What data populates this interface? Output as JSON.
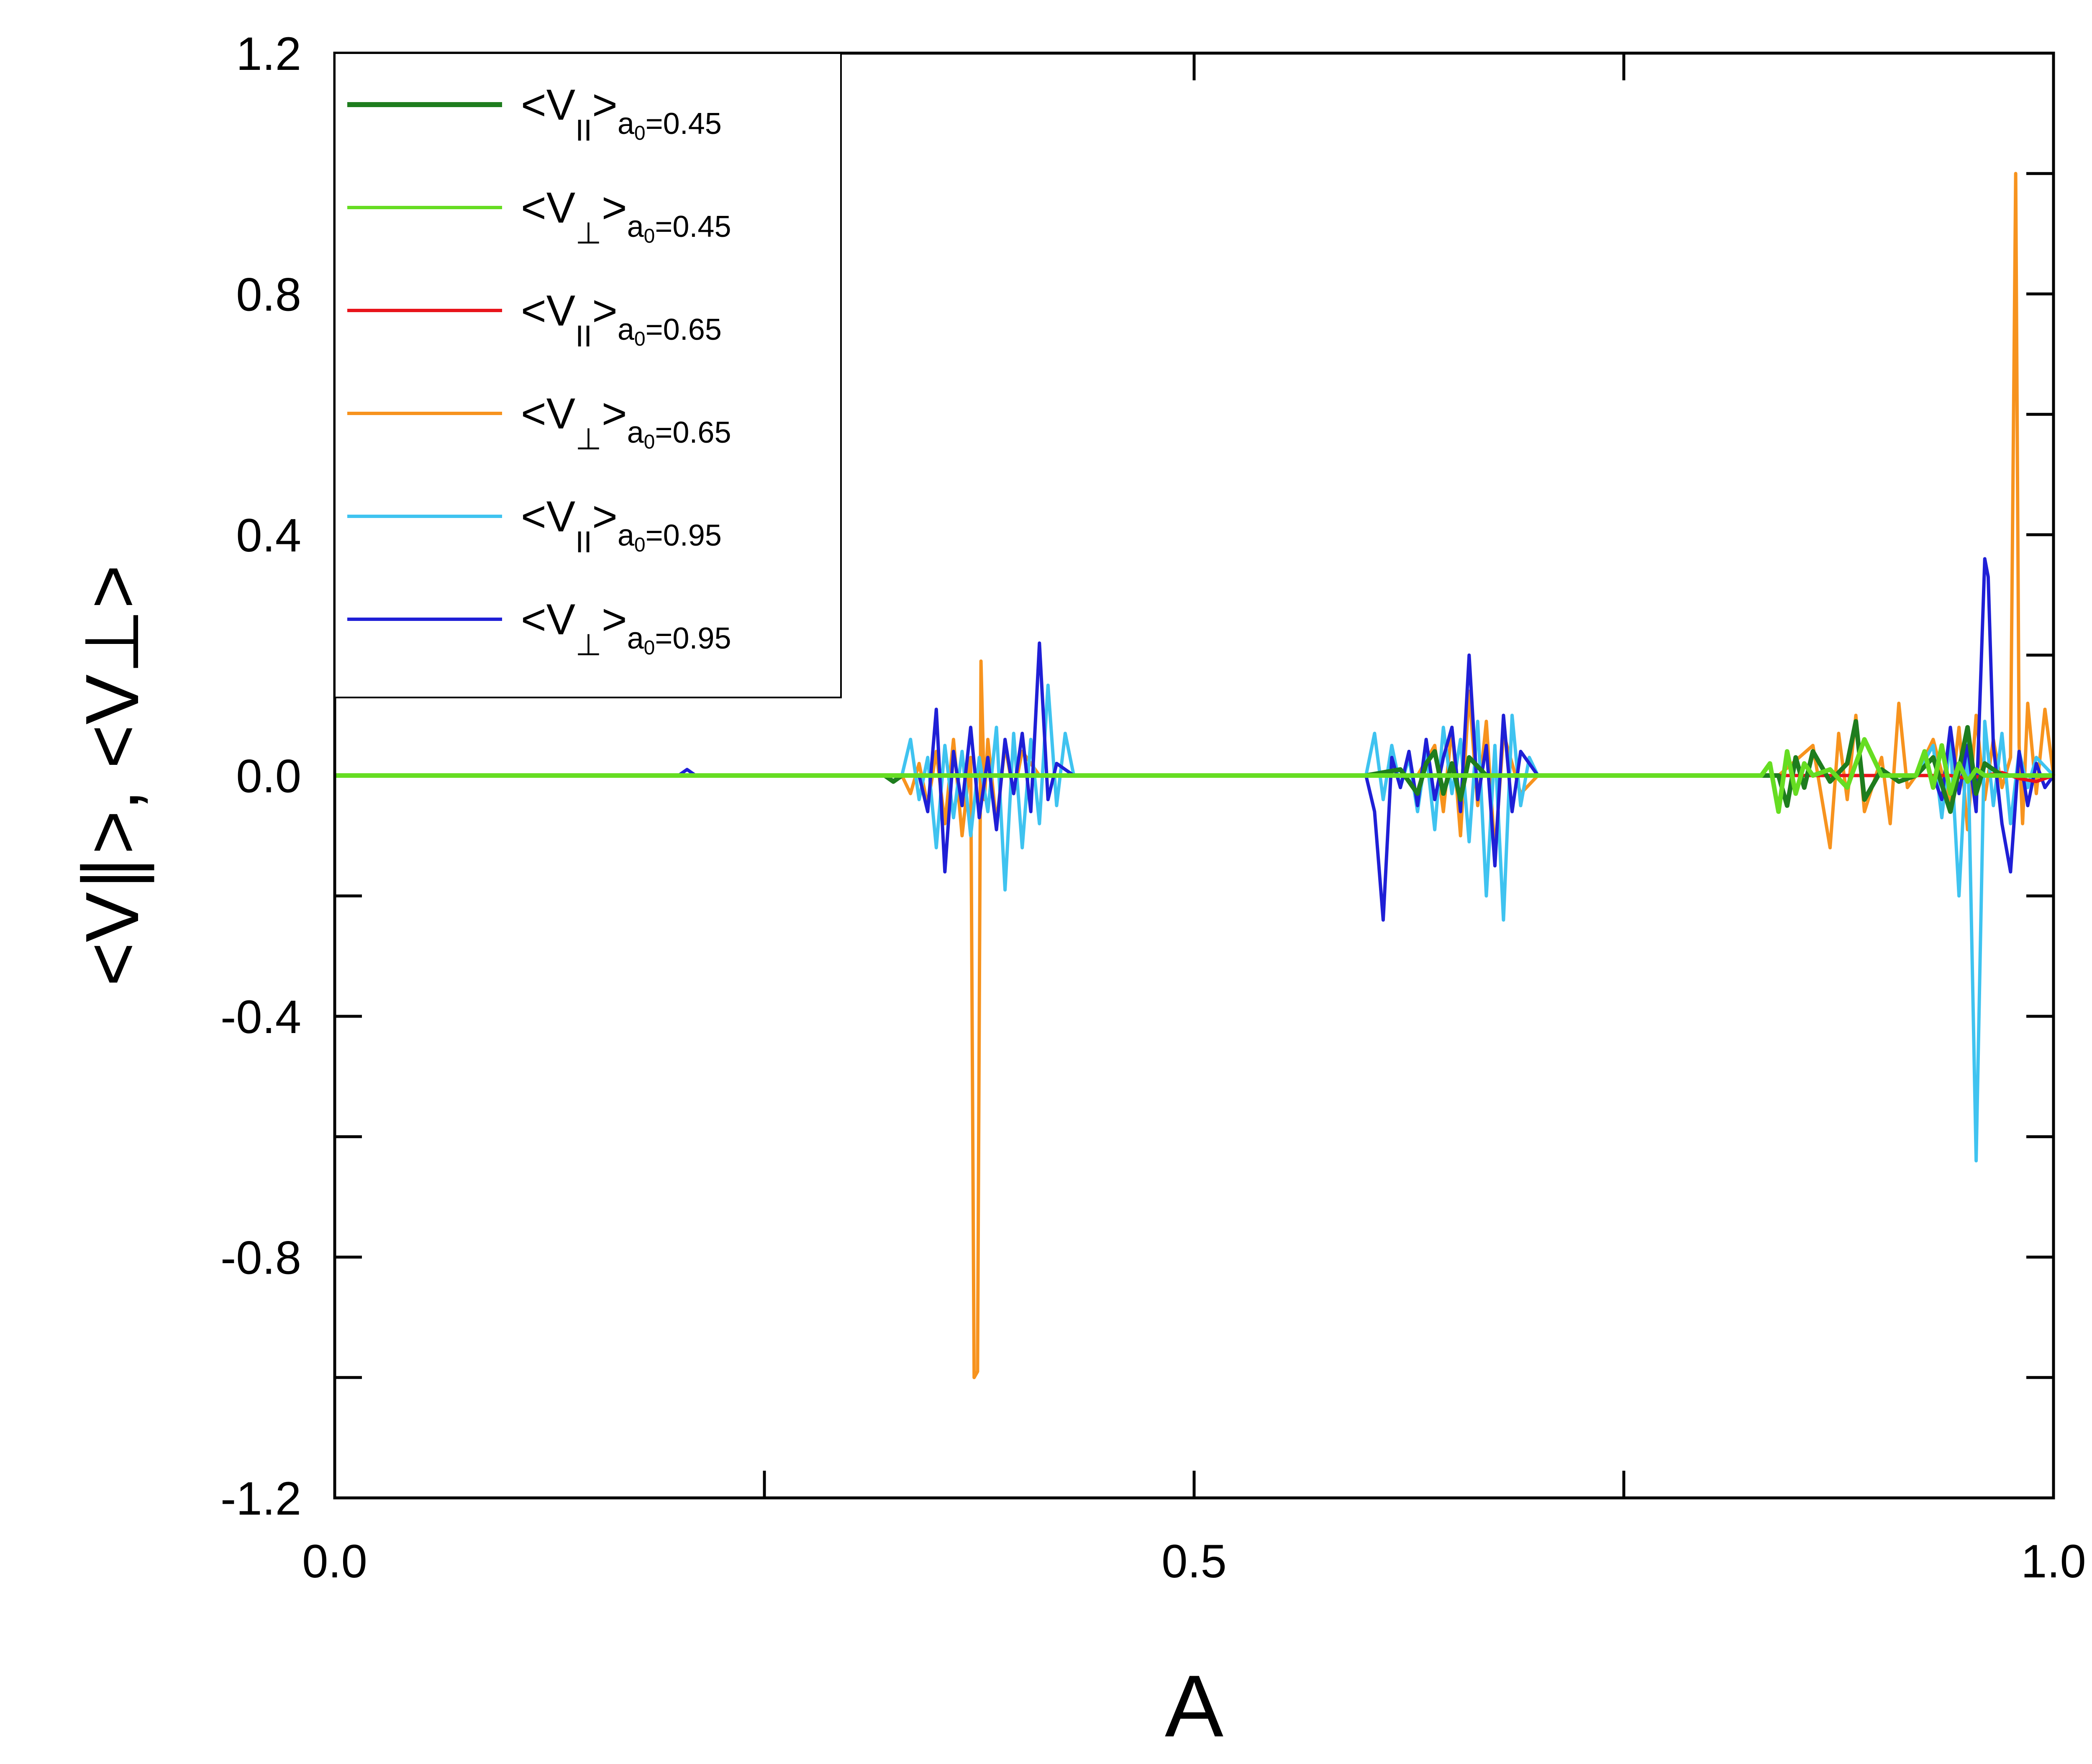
{
  "chart_data": {
    "type": "line",
    "title": "",
    "xlabel": "A",
    "ylabel": "<V∥>, <V⊥>",
    "xlim": [
      0.0,
      1.0
    ],
    "ylim": [
      -1.2,
      1.2
    ],
    "xticks": [
      0.0,
      0.25,
      0.5,
      0.75,
      1.0
    ],
    "xtick_labels": [
      "0.0",
      "",
      "0.5",
      "",
      "1.0"
    ],
    "yticks": [
      -1.2,
      -1.0,
      -0.8,
      -0.6,
      -0.4,
      -0.2,
      0.0,
      0.2,
      0.4,
      0.6,
      0.8,
      1.0,
      1.2
    ],
    "ytick_labels": [
      "-1.2",
      "",
      "-0.8",
      "",
      "-0.4",
      "",
      "0.0",
      "",
      "0.4",
      "",
      "0.8",
      "",
      "1.2"
    ],
    "grid": false,
    "legend_position": "top-left",
    "series": [
      {
        "name": "<V∥>a0=0.45",
        "legend_main": "<V",
        "legend_sym": "II",
        "legend_close": ">",
        "legend_sub": "a",
        "legend_subsub": "0",
        "legend_value": "=0.45",
        "color": "#1e7d1e",
        "x": [
          0.0,
          0.32,
          0.325,
          0.33,
          0.6,
          0.62,
          0.63,
          0.635,
          0.64,
          0.645,
          0.65,
          0.655,
          0.66,
          0.67,
          0.75,
          0.84,
          0.845,
          0.85,
          0.855,
          0.86,
          0.87,
          0.88,
          0.885,
          0.89,
          0.9,
          0.91,
          0.92,
          0.93,
          0.94,
          0.95,
          0.955,
          0.96,
          0.97,
          1.0
        ],
        "y": [
          0.0,
          0.0,
          -0.01,
          0.0,
          0.0,
          0.01,
          -0.03,
          0.02,
          0.04,
          -0.03,
          0.02,
          -0.04,
          0.03,
          0.0,
          0.0,
          0.0,
          -0.05,
          0.03,
          -0.02,
          0.04,
          -0.01,
          0.02,
          0.09,
          -0.04,
          0.01,
          -0.01,
          0.0,
          0.03,
          -0.06,
          0.08,
          -0.03,
          0.02,
          0.0,
          0.0
        ]
      },
      {
        "name": "<V⊥>a0=0.45",
        "legend_main": "<V",
        "legend_sym": "⊥",
        "legend_close": ">",
        "legend_sub": "a",
        "legend_subsub": "0",
        "legend_value": "=0.45",
        "color": "#66dd22",
        "x": [
          0.0,
          0.83,
          0.835,
          0.84,
          0.845,
          0.85,
          0.855,
          0.86,
          0.87,
          0.88,
          0.89,
          0.9,
          0.92,
          0.925,
          0.93,
          0.935,
          0.94,
          0.945,
          0.95,
          0.955,
          0.96,
          1.0
        ],
        "y": [
          0.0,
          0.0,
          0.02,
          -0.06,
          0.04,
          -0.03,
          0.02,
          0.0,
          0.01,
          -0.02,
          0.06,
          0.0,
          0.0,
          0.04,
          -0.02,
          0.05,
          -0.03,
          0.02,
          -0.01,
          0.01,
          0.0,
          0.0
        ]
      },
      {
        "name": "<V∥>a0=0.65",
        "legend_main": "<V",
        "legend_sym": "II",
        "legend_close": ">",
        "legend_sub": "a",
        "legend_subsub": "0",
        "legend_value": "=0.65",
        "color": "#e8141b",
        "x": [
          0.0,
          0.9,
          0.94,
          0.95,
          0.96,
          0.97,
          0.98,
          0.99,
          1.0
        ],
        "y": [
          0.0,
          0.0,
          0.0,
          -0.005,
          0.0,
          0.005,
          -0.005,
          -0.01,
          0.0
        ]
      },
      {
        "name": "<V⊥>a0=0.65",
        "legend_main": "<V",
        "legend_sym": "⊥",
        "legend_close": ">",
        "legend_sub": "a",
        "legend_subsub": "0",
        "legend_value": "=0.65",
        "color": "#f7931e",
        "x": [
          0.0,
          0.3,
          0.33,
          0.335,
          0.34,
          0.345,
          0.35,
          0.355,
          0.36,
          0.365,
          0.37,
          0.372,
          0.374,
          0.376,
          0.378,
          0.38,
          0.385,
          0.39,
          0.395,
          0.4,
          0.41,
          0.42,
          0.6,
          0.63,
          0.64,
          0.645,
          0.65,
          0.655,
          0.66,
          0.665,
          0.67,
          0.675,
          0.68,
          0.69,
          0.7,
          0.84,
          0.86,
          0.87,
          0.875,
          0.88,
          0.885,
          0.89,
          0.9,
          0.905,
          0.91,
          0.915,
          0.92,
          0.93,
          0.94,
          0.945,
          0.95,
          0.955,
          0.96,
          0.965,
          0.97,
          0.975,
          0.978,
          0.98,
          0.982,
          0.985,
          0.99,
          0.995,
          1.0
        ],
        "y": [
          0.0,
          0.0,
          0.0,
          -0.03,
          0.02,
          -0.05,
          0.04,
          -0.08,
          0.06,
          -0.1,
          0.03,
          -1.0,
          -0.99,
          0.19,
          -0.04,
          0.06,
          -0.08,
          0.05,
          -0.03,
          0.04,
          0.0,
          0.0,
          0.0,
          0.0,
          0.05,
          -0.06,
          0.08,
          -0.1,
          0.14,
          -0.05,
          0.09,
          -0.13,
          0.07,
          -0.03,
          0.0,
          0.0,
          0.05,
          -0.12,
          0.07,
          -0.04,
          0.1,
          -0.06,
          0.03,
          -0.08,
          0.12,
          -0.02,
          0.0,
          0.06,
          -0.05,
          0.08,
          -0.09,
          0.1,
          -0.04,
          0.06,
          -0.02,
          0.03,
          1.0,
          0.05,
          -0.08,
          0.12,
          -0.03,
          0.11,
          0.0
        ]
      },
      {
        "name": "<V∥>a0=0.95",
        "legend_main": "<V",
        "legend_sym": "II",
        "legend_close": ">",
        "legend_sub": "a",
        "legend_subsub": "0",
        "legend_value": "=0.95",
        "color": "#3fc3f0",
        "x": [
          0.0,
          0.33,
          0.335,
          0.34,
          0.345,
          0.35,
          0.355,
          0.36,
          0.365,
          0.37,
          0.375,
          0.38,
          0.385,
          0.39,
          0.395,
          0.4,
          0.405,
          0.41,
          0.415,
          0.42,
          0.425,
          0.43,
          0.6,
          0.605,
          0.61,
          0.615,
          0.62,
          0.625,
          0.63,
          0.635,
          0.64,
          0.645,
          0.65,
          0.655,
          0.66,
          0.665,
          0.67,
          0.675,
          0.68,
          0.685,
          0.69,
          0.695,
          0.7,
          0.9,
          0.92,
          0.93,
          0.935,
          0.94,
          0.945,
          0.95,
          0.955,
          0.96,
          0.965,
          0.97,
          0.975,
          0.98,
          0.985,
          0.99,
          1.0
        ],
        "y": [
          0.0,
          0.0,
          0.06,
          -0.04,
          0.03,
          -0.12,
          0.05,
          -0.07,
          0.04,
          -0.1,
          0.03,
          -0.06,
          0.08,
          -0.19,
          0.07,
          -0.12,
          0.06,
          -0.08,
          0.15,
          -0.05,
          0.07,
          0.0,
          0.0,
          0.07,
          -0.04,
          0.05,
          -0.02,
          0.03,
          -0.06,
          0.04,
          -0.09,
          0.08,
          -0.03,
          0.06,
          -0.11,
          0.09,
          -0.2,
          0.05,
          -0.24,
          0.1,
          -0.05,
          0.03,
          0.0,
          0.0,
          0.0,
          0.05,
          -0.07,
          0.06,
          -0.2,
          0.08,
          -0.64,
          0.09,
          -0.05,
          0.07,
          -0.08,
          0.04,
          -0.02,
          0.03,
          0.0
        ]
      },
      {
        "name": "<V⊥>a0=0.95",
        "legend_main": "<V",
        "legend_sym": "⊥",
        "legend_close": ">",
        "legend_sub": "a",
        "legend_subsub": "0",
        "legend_value": "=0.95",
        "color": "#1f1fd6",
        "x": [
          0.0,
          0.2,
          0.205,
          0.21,
          0.34,
          0.345,
          0.35,
          0.355,
          0.36,
          0.365,
          0.37,
          0.375,
          0.38,
          0.385,
          0.39,
          0.395,
          0.4,
          0.405,
          0.41,
          0.415,
          0.42,
          0.43,
          0.6,
          0.605,
          0.61,
          0.615,
          0.62,
          0.625,
          0.63,
          0.635,
          0.64,
          0.645,
          0.65,
          0.655,
          0.66,
          0.665,
          0.67,
          0.675,
          0.68,
          0.685,
          0.69,
          0.7,
          0.93,
          0.935,
          0.94,
          0.945,
          0.95,
          0.955,
          0.96,
          0.962,
          0.965,
          0.97,
          0.975,
          0.98,
          0.985,
          0.99,
          0.995,
          1.0
        ],
        "y": [
          0.0,
          0.0,
          0.01,
          0.0,
          0.0,
          -0.06,
          0.11,
          -0.16,
          0.04,
          -0.05,
          0.08,
          -0.07,
          0.03,
          -0.09,
          0.06,
          -0.03,
          0.07,
          -0.06,
          0.22,
          -0.04,
          0.02,
          0.0,
          0.0,
          -0.06,
          -0.24,
          0.03,
          -0.02,
          0.04,
          -0.05,
          0.06,
          -0.04,
          0.03,
          0.08,
          -0.06,
          0.2,
          -0.04,
          0.05,
          -0.15,
          0.1,
          -0.06,
          0.04,
          0.0,
          0.0,
          -0.04,
          0.08,
          -0.03,
          0.05,
          -0.06,
          0.36,
          0.33,
          0.05,
          -0.08,
          -0.16,
          0.04,
          -0.05,
          0.02,
          -0.02,
          0.0
        ]
      }
    ]
  }
}
